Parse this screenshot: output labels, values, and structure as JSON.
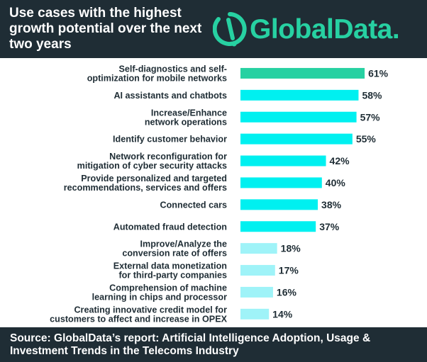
{
  "header": {
    "title": "Use cases with the highest growth potential over the next two years"
  },
  "logo": {
    "text": "GlobalData.",
    "icon": "globaldata-logo-icon"
  },
  "footer": {
    "source": "Source: GlobalData’s report: Artificial Intelligence Adoption, Usage & Investment Trends in the Telecoms Industry"
  },
  "colors": {
    "header_bg": "#1f2d35",
    "brand_green": "#27d1a2",
    "highlight_bar": "#27d1a2",
    "main_bar": "#00f0f0",
    "light_bar": "#9ff3f8"
  },
  "chart_data": {
    "type": "bar",
    "orientation": "horizontal",
    "title": "Use cases with the highest growth potential over the next two years",
    "xlabel": "",
    "ylabel": "",
    "xlim": [
      0,
      100
    ],
    "grid": false,
    "legend": "none",
    "value_suffix": "%",
    "categories": [
      [
        "Self-diagnostics and self-",
        "optimization for mobile networks"
      ],
      [
        "AI assistants and chatbots"
      ],
      [
        "Increase/Enhance",
        "network operations"
      ],
      [
        "Identify customer behavior"
      ],
      [
        "Network reconfiguration for",
        "mitigation of cyber security attacks"
      ],
      [
        "Provide personalized and targeted",
        "recommendations, services and offers"
      ],
      [
        "Connected cars"
      ],
      [
        "Automated fraud detection"
      ],
      [
        "Improve/Analyze the",
        "conversion rate of offers"
      ],
      [
        "External data monetization",
        "for third-party companies"
      ],
      [
        "Comprehension of machine",
        "learning in chips and processor"
      ],
      [
        "Creating innovative credit model for",
        "customers to affect and increase in OPEX"
      ]
    ],
    "values": [
      61,
      58,
      57,
      55,
      42,
      40,
      38,
      37,
      18,
      17,
      16,
      14
    ],
    "bar_colors": [
      "#27d1a2",
      "#00f0f0",
      "#00f0f0",
      "#00f0f0",
      "#00f0f0",
      "#00f0f0",
      "#00f0f0",
      "#00f0f0",
      "#9ff3f8",
      "#9ff3f8",
      "#9ff3f8",
      "#9ff3f8"
    ]
  }
}
